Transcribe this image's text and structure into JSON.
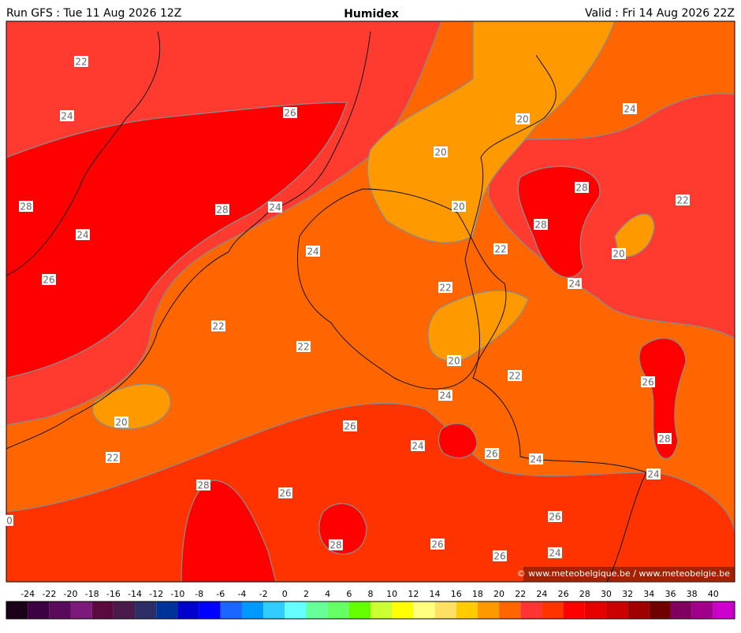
{
  "header": {
    "run": "Run GFS : Tue 11 Aug 2026 12Z",
    "title": "Humidex",
    "valid": "Valid : Fri 14 Aug 2026 22Z"
  },
  "contour_labels": [
    "22",
    "24",
    "26",
    "28",
    "28",
    "24",
    "24",
    "26",
    "20",
    "24",
    "20",
    "28",
    "20",
    "22",
    "28",
    "24",
    "22",
    "20",
    "22",
    "24",
    "22",
    "22",
    "20",
    "22",
    "26",
    "24",
    "20",
    "26",
    "28",
    "24",
    "22",
    "26",
    "24",
    "24",
    "28",
    "26",
    "0",
    "26",
    "28",
    "26",
    "24",
    "26"
  ],
  "copyright": "© www.meteobelgique.be / www.meteobelgie.be",
  "colorbar": {
    "ticks": [
      -24,
      -22,
      -20,
      -18,
      -16,
      -14,
      -12,
      -10,
      -8,
      -6,
      -4,
      -2,
      0,
      2,
      4,
      6,
      8,
      10,
      12,
      14,
      16,
      18,
      20,
      22,
      24,
      26,
      28,
      30,
      32,
      34,
      36,
      38,
      40
    ],
    "colors": [
      "#1a0019",
      "#3a0040",
      "#5a0a5a",
      "#7a1a7a",
      "#5a0a3c",
      "#4a1a4a",
      "#2e2e66",
      "#003399",
      "#0000cc",
      "#0000ff",
      "#1a66ff",
      "#0099ff",
      "#33ccff",
      "#66ffff",
      "#66ff99",
      "#66ff66",
      "#66ff00",
      "#ccff33",
      "#ffff00",
      "#ffff80",
      "#ffe066",
      "#ffcc00",
      "#ff9900",
      "#ff6600",
      "#ff3333",
      "#ff3300",
      "#ff0000",
      "#e60000",
      "#cc0000",
      "#a00000",
      "#700000",
      "#800060",
      "#a0008a",
      "#cc00cc"
    ]
  }
}
